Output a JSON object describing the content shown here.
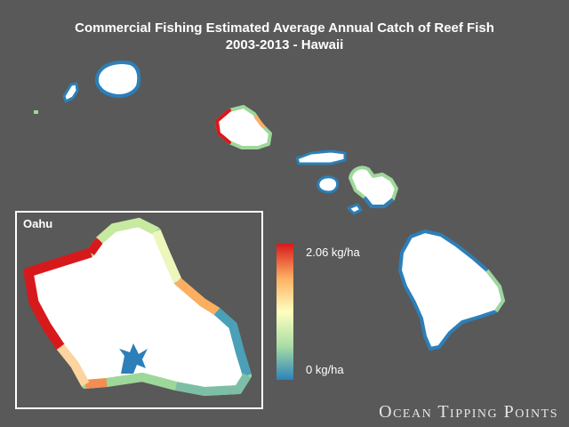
{
  "title": {
    "line1": "Commercial Fishing Estimated Average Annual Catch of Reef Fish",
    "line2": "2003-2013 - Hawaii"
  },
  "inset": {
    "label": "Oahu"
  },
  "legend": {
    "max_label": "2.06 kg/ha",
    "min_label": "0 kg/ha",
    "max_value": 2.06,
    "min_value": 0,
    "unit": "kg/ha",
    "colors": [
      "#2b83ba",
      "#abdda4",
      "#ffffbf",
      "#fdae61",
      "#d7191c"
    ]
  },
  "colors": {
    "background": "#595959",
    "land": "#ffffff",
    "frame": "#ffffff"
  },
  "brand": "Ocean Tipping Points"
}
